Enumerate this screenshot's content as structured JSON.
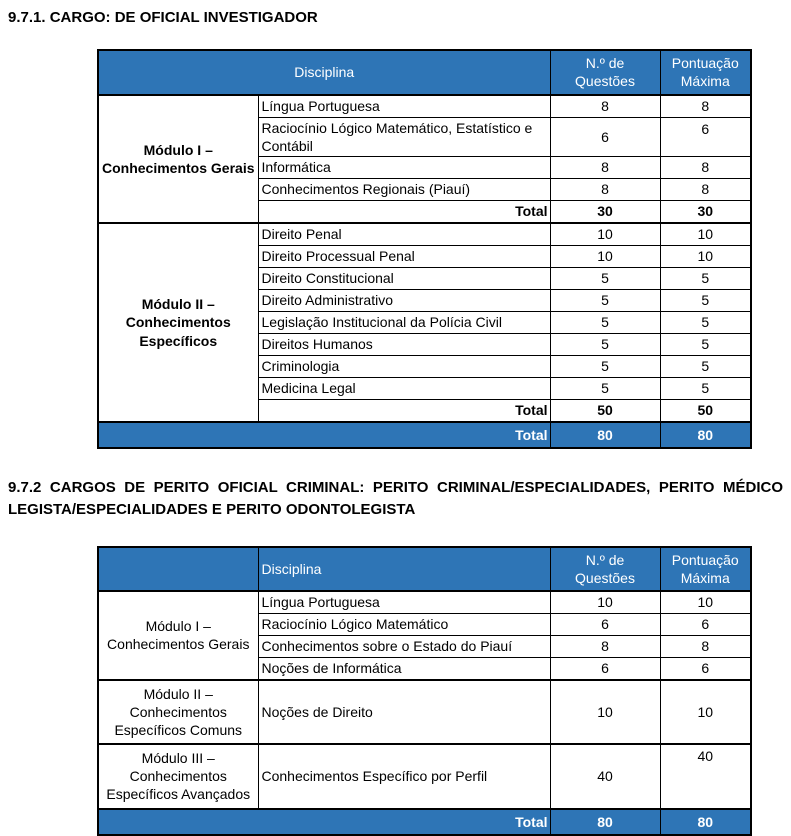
{
  "page": {
    "background": "#ffffff",
    "accent_blue": "#2E75B6",
    "border_color": "#000000",
    "header_text_color": "#ffffff"
  },
  "heading1": "9.7.1. CARGO: DE OFICIAL INVESTIGADOR",
  "heading2": "9.7.2 CARGOS DE PERITO OFICIAL CRIMINAL: PERITO CRIMINAL/ESPECIALIDADES, PERITO MÉDICO LEGISTA/ESPECIALIDADES E PERITO ODONTOLEGISTA",
  "tables": [
    {
      "name": "cargo-oficial-investigador",
      "header": {
        "merged": true,
        "disciplina": "Disciplina",
        "questoes": "N.º de\nQuestões",
        "pontuacao": "Pontuação\nMáxima"
      },
      "sections": [
        {
          "module": "Módulo I –\nConhecimentos Gerais",
          "module_bold": true,
          "rows": [
            {
              "d": "Língua Portuguesa",
              "q": "8",
              "p": "8"
            },
            {
              "d": "Raciocínio Lógico Matemático, Estatístico e Contábil",
              "q": "6",
              "p": "6",
              "p_top": true
            },
            {
              "d": "Informática",
              "q": "8",
              "p": "8"
            },
            {
              "d": "Conhecimentos Regionais (Piauí)",
              "q": "8",
              "p": "8"
            }
          ],
          "total": {
            "label": "Total",
            "q": "30",
            "p": "30"
          }
        },
        {
          "module": "Módulo II –\nConhecimentos\nEspecíficos",
          "module_bold": true,
          "rows": [
            {
              "d": "Direito Penal",
              "q": "10",
              "p": "10"
            },
            {
              "d": "Direito Processual Penal",
              "q": "10",
              "p": "10"
            },
            {
              "d": "Direito Constitucional",
              "q": "5",
              "p": "5"
            },
            {
              "d": "Direito Administrativo",
              "q": "5",
              "p": "5"
            },
            {
              "d": "Legislação Institucional da Polícia Civil",
              "q": "5",
              "p": "5"
            },
            {
              "d": "Direitos Humanos",
              "q": "5",
              "p": "5"
            },
            {
              "d": "Criminologia",
              "q": "5",
              "p": "5"
            },
            {
              "d": "Medicina Legal",
              "q": "5",
              "p": "5"
            }
          ],
          "total": {
            "label": "Total",
            "q": "50",
            "p": "50"
          }
        }
      ],
      "grand_total": {
        "label": "Total",
        "q": "80",
        "p": "80"
      }
    },
    {
      "name": "cargos-perito-oficial-criminal",
      "header": {
        "merged": false,
        "disciplina": "Disciplina",
        "questoes": "N.º de\nQuestões",
        "pontuacao": "Pontuação\nMáxima"
      },
      "sections": [
        {
          "module": "Módulo I –\nConhecimentos Gerais",
          "module_bold": false,
          "rows": [
            {
              "d": "Língua Portuguesa",
              "q": "10",
              "p": "10"
            },
            {
              "d": "Raciocínio Lógico Matemático",
              "q": "6",
              "p": "6"
            },
            {
              "d": "Conhecimentos sobre o Estado do Piauí",
              "q": "8",
              "p": "8"
            },
            {
              "d": "Noções de Informática",
              "q": "6",
              "p": "6"
            }
          ]
        },
        {
          "module": "Módulo II –\nConhecimentos\nEspecíficos Comuns",
          "module_bold": false,
          "rows": [
            {
              "d": "Noções de Direito",
              "q": "10",
              "p": "10",
              "tall": true
            }
          ]
        },
        {
          "module": "Módulo III –\nConhecimentos\nEspecíficos Avançados",
          "module_bold": false,
          "rows": [
            {
              "d": "Conhecimentos Específico por Perfil",
              "q": "40",
              "p": "40",
              "tall": true,
              "p_top": true
            }
          ]
        }
      ],
      "grand_total": {
        "label": "Total",
        "q": "80",
        "p": "80"
      }
    }
  ]
}
